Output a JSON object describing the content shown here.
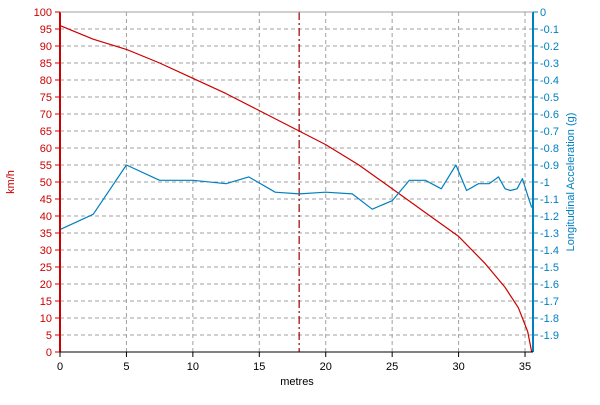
{
  "chart_data": {
    "type": "line",
    "grid": true,
    "xlabel": "metres",
    "ylabel_left": "km/h",
    "ylabel_right": "Longitudinal Acceleration (g)",
    "xlim": [
      0,
      35.6
    ],
    "x_ticks": [
      0,
      5,
      10,
      15,
      20,
      25,
      30,
      35
    ],
    "ylim_left": [
      0,
      100
    ],
    "y_ticks_left": [
      0,
      5,
      10,
      15,
      20,
      25,
      30,
      35,
      40,
      45,
      50,
      55,
      60,
      65,
      70,
      75,
      80,
      85,
      90,
      95,
      100
    ],
    "ylim_right": [
      -2.0,
      0
    ],
    "y_ticks_right": [
      0,
      -0.1,
      -0.2,
      -0.3,
      -0.4,
      -0.5,
      -0.6,
      -0.7,
      -0.8,
      -0.9,
      -1,
      -1.1,
      -1.2,
      -1.3,
      -1.4,
      -1.5,
      -1.6,
      -1.7,
      -1.8,
      -1.9
    ],
    "cursor_x": 18,
    "colors": {
      "speed": "#cc0000",
      "accel": "#0080c0",
      "grid": "#a0a0a0",
      "cursor": "#990000"
    },
    "series": [
      {
        "axis": "left",
        "color": "#cc0000",
        "x": [
          0,
          2.5,
          5,
          7.5,
          10,
          12.5,
          15,
          17.5,
          20,
          22.5,
          25,
          27.5,
          30,
          32,
          33.5,
          34.5,
          35.2,
          35.5
        ],
        "values": [
          96,
          92,
          89,
          85,
          80.5,
          76,
          71,
          66,
          61,
          55,
          48,
          41,
          34,
          26,
          19,
          13,
          6,
          0
        ]
      },
      {
        "axis": "right",
        "color": "#0080c0",
        "x": [
          0,
          2.5,
          5,
          7.5,
          10,
          12.5,
          14.2,
          16.2,
          18,
          20,
          22,
          23.5,
          25,
          26.3,
          27.5,
          28.7,
          29.8,
          30.6,
          31.5,
          32.3,
          33,
          33.5,
          33.9,
          34.4,
          34.8,
          35.2,
          35.5
        ],
        "values": [
          -1.28,
          -1.19,
          -0.9,
          -0.99,
          -0.99,
          -1.01,
          -0.97,
          -1.06,
          -1.07,
          -1.06,
          -1.07,
          -1.16,
          -1.11,
          -0.99,
          -0.99,
          -1.04,
          -0.9,
          -1.05,
          -1.01,
          -1.01,
          -0.97,
          -1.04,
          -1.05,
          -1.04,
          -0.98,
          -1.08,
          -1.15
        ]
      }
    ]
  }
}
